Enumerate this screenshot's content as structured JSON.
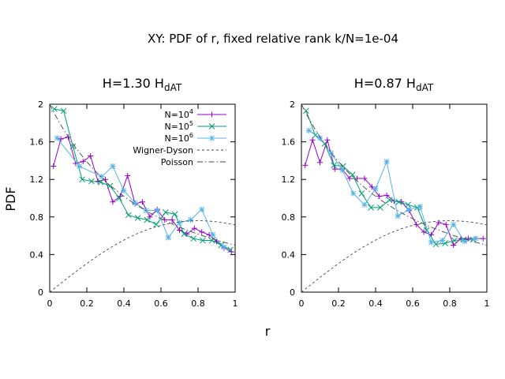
{
  "title": "XY: PDF of r, fixed relative rank k/N=1e-04",
  "ylabel": "PDF",
  "xlabel": "r",
  "chart_data": [
    {
      "type": "line",
      "title_main": "H=1.30 H",
      "title_sub": "dAT",
      "xlim": [
        0,
        1
      ],
      "ylim": [
        0,
        2
      ],
      "xticks": [
        "0",
        "0.2",
        "0.4",
        "0.6",
        "0.8",
        "1"
      ],
      "yticks": [
        "0",
        "0.4",
        "0.8",
        "1.2",
        "1.6",
        "2"
      ],
      "legend_position": "top-right",
      "series": [
        {
          "key": "n4",
          "name_base": "N=10",
          "name_exp": "4",
          "color": "#9400d3",
          "marker": "plus",
          "x": [
            0.02,
            0.06,
            0.1,
            0.14,
            0.18,
            0.22,
            0.26,
            0.3,
            0.34,
            0.38,
            0.42,
            0.46,
            0.5,
            0.54,
            0.58,
            0.62,
            0.66,
            0.7,
            0.74,
            0.78,
            0.82,
            0.86,
            0.9,
            0.94,
            0.98
          ],
          "y": [
            1.34,
            1.63,
            1.65,
            1.37,
            1.39,
            1.45,
            1.18,
            1.2,
            0.96,
            1.02,
            1.24,
            0.94,
            0.96,
            0.8,
            0.88,
            0.77,
            0.77,
            0.66,
            0.62,
            0.68,
            0.64,
            0.61,
            0.54,
            0.47,
            0.43
          ]
        },
        {
          "key": "n5",
          "name_base": "N=10",
          "name_exp": "5",
          "color": "#009e73",
          "marker": "cross",
          "x": [
            0.025,
            0.075,
            0.125,
            0.175,
            0.225,
            0.275,
            0.325,
            0.375,
            0.425,
            0.475,
            0.525,
            0.575,
            0.625,
            0.675,
            0.725,
            0.775,
            0.825,
            0.875,
            0.925,
            0.975
          ],
          "y": [
            1.95,
            1.93,
            1.55,
            1.2,
            1.18,
            1.17,
            1.13,
            1.0,
            0.82,
            0.79,
            0.77,
            0.72,
            0.85,
            0.83,
            0.62,
            0.57,
            0.55,
            0.55,
            0.5,
            0.45
          ]
        },
        {
          "key": "n6",
          "name_base": "N=10",
          "name_exp": "6",
          "color": "#56b4e9",
          "marker": "star",
          "x": [
            0.04,
            0.16,
            0.28,
            0.34,
            0.4,
            0.46,
            0.52,
            0.58,
            0.64,
            0.7,
            0.76,
            0.82,
            0.88,
            0.94
          ],
          "y": [
            1.64,
            1.34,
            1.23,
            1.34,
            1.08,
            0.95,
            0.87,
            0.87,
            0.58,
            0.74,
            0.77,
            0.88,
            0.61,
            0.48
          ]
        },
        {
          "key": "wd",
          "name": "Wigner-Dyson",
          "color": "#444444",
          "dash": "3,3",
          "curve": "wd"
        },
        {
          "key": "ps",
          "name": "Poisson",
          "color": "#444444",
          "dash": "7,3,1.5,3",
          "curve": "poisson"
        }
      ]
    },
    {
      "type": "line",
      "title_main": "H=0.87 H",
      "title_sub": "dAT",
      "xlim": [
        0,
        1
      ],
      "ylim": [
        0,
        2
      ],
      "xticks": [
        "0",
        "0.2",
        "0.4",
        "0.6",
        "0.8",
        "1"
      ],
      "yticks": [
        "0",
        "0.4",
        "0.8",
        "1.2",
        "1.6",
        "2"
      ],
      "series": [
        {
          "key": "n4",
          "color": "#9400d3",
          "marker": "plus",
          "x": [
            0.02,
            0.06,
            0.1,
            0.14,
            0.18,
            0.22,
            0.26,
            0.3,
            0.34,
            0.38,
            0.42,
            0.46,
            0.5,
            0.54,
            0.58,
            0.62,
            0.66,
            0.7,
            0.74,
            0.78,
            0.82,
            0.86,
            0.9,
            0.94,
            0.98
          ],
          "y": [
            1.35,
            1.62,
            1.38,
            1.62,
            1.31,
            1.31,
            1.21,
            1.21,
            1.21,
            1.12,
            1.02,
            1.03,
            0.97,
            0.96,
            0.87,
            0.72,
            0.64,
            0.61,
            0.74,
            0.72,
            0.5,
            0.57,
            0.57,
            0.57,
            0.57
          ]
        },
        {
          "key": "n5",
          "color": "#009e73",
          "marker": "cross",
          "x": [
            0.025,
            0.075,
            0.125,
            0.175,
            0.225,
            0.275,
            0.325,
            0.375,
            0.425,
            0.475,
            0.525,
            0.575,
            0.625,
            0.675,
            0.725,
            0.775,
            0.825,
            0.875,
            0.925
          ],
          "y": [
            1.93,
            1.67,
            1.58,
            1.35,
            1.34,
            1.25,
            1.05,
            0.9,
            0.9,
            0.98,
            0.96,
            0.93,
            0.9,
            0.66,
            0.51,
            0.52,
            0.55,
            0.56,
            0.56
          ]
        },
        {
          "key": "n6",
          "color": "#56b4e9",
          "marker": "star",
          "x": [
            0.04,
            0.1,
            0.16,
            0.22,
            0.28,
            0.34,
            0.4,
            0.46,
            0.52,
            0.58,
            0.64,
            0.7,
            0.76,
            0.82,
            0.88,
            0.94
          ],
          "y": [
            1.72,
            1.64,
            1.48,
            1.3,
            1.05,
            0.93,
            1.1,
            1.39,
            0.81,
            0.88,
            0.91,
            0.53,
            0.55,
            0.72,
            0.54,
            0.57
          ]
        },
        {
          "key": "wd",
          "color": "#444444",
          "dash": "3,3",
          "curve": "wd"
        },
        {
          "key": "ps",
          "color": "#444444",
          "dash": "7,3,1.5,3",
          "curve": "poisson"
        }
      ]
    }
  ]
}
